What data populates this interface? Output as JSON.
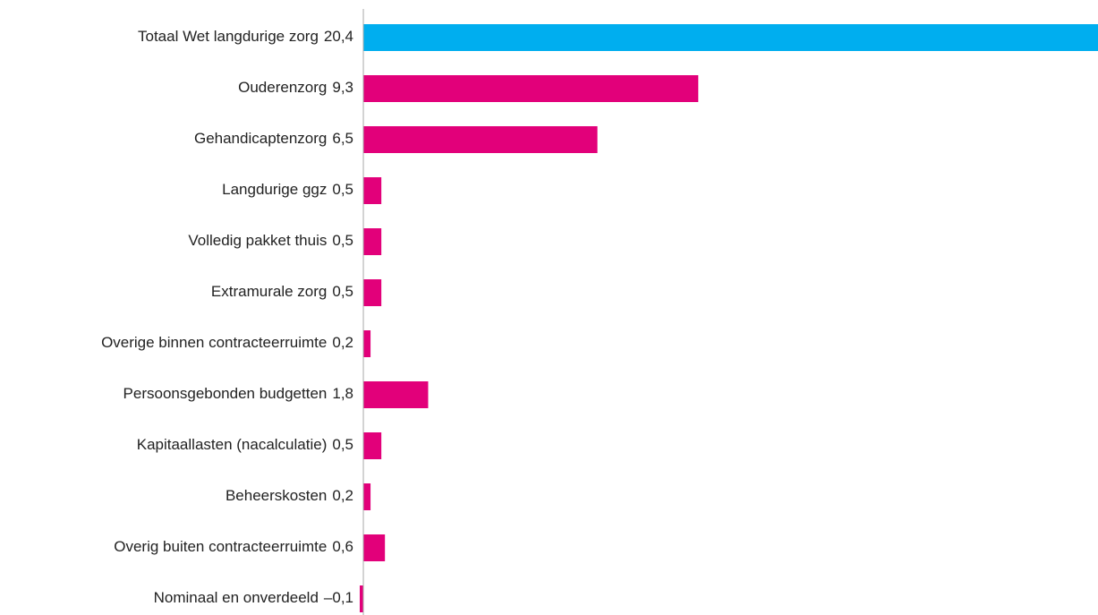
{
  "chart_data": {
    "type": "barh",
    "categories": [
      "Totaal Wet langdurige zorg",
      "Ouderenzorg",
      "Gehandicaptenzorg",
      "Langdurige ggz",
      "Volledig pakket thuis",
      "Extramurale zorg",
      "Overige binnen contracteerruimte",
      "Persoonsgebonden budgetten",
      "Kapitaallasten (nacalculatie)",
      "Beheerskosten",
      "Overig buiten contracteerruimte",
      "Nominaal en onverdeeld"
    ],
    "values": [
      20.4,
      9.3,
      6.5,
      0.5,
      0.5,
      0.5,
      0.2,
      1.8,
      0.5,
      0.2,
      0.6,
      -0.1
    ],
    "value_labels": [
      "20,4",
      "9,3",
      "6,5",
      "0,5",
      "0,5",
      "0,5",
      "0,2",
      "1,8",
      "0,5",
      "0,2",
      "0,6",
      "–0,1"
    ],
    "colors": [
      "#00aeef",
      "#e2007a",
      "#e2007a",
      "#e2007a",
      "#e2007a",
      "#e2007a",
      "#e2007a",
      "#e2007a",
      "#e2007a",
      "#e2007a",
      "#e2007a",
      "#e2007a"
    ]
  }
}
